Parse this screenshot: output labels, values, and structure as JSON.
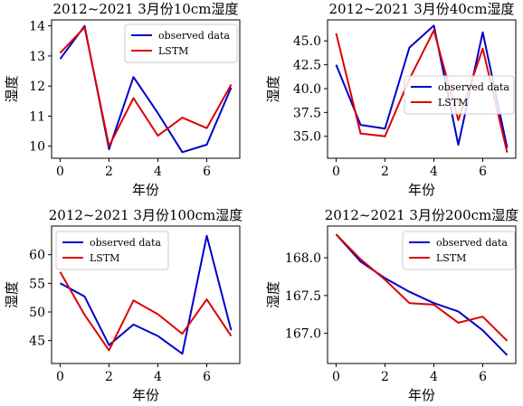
{
  "chart_data": [
    {
      "type": "line",
      "title": "2012~2021 3月份10cm湿度",
      "xlabel": "年份",
      "ylabel": "湿度",
      "x": [
        0,
        1,
        2,
        3,
        4,
        5,
        6,
        7
      ],
      "xticks": [
        0,
        2,
        4,
        6
      ],
      "xlim": [
        -0.35,
        7.35
      ],
      "ylim": [
        9.6,
        14.2
      ],
      "yticks": [
        10,
        11,
        12,
        13,
        14
      ],
      "ytick_labels": [
        "10",
        "11",
        "12",
        "13",
        "14"
      ],
      "legend": "top-right",
      "series": [
        {
          "name": "observed data",
          "color": "#0000cc",
          "values": [
            12.9,
            14.0,
            9.9,
            12.3,
            11.1,
            9.8,
            10.05,
            11.95
          ]
        },
        {
          "name": "LSTM",
          "color": "#dd0000",
          "values": [
            13.1,
            13.95,
            10.0,
            11.6,
            10.35,
            10.95,
            10.6,
            12.05
          ]
        }
      ]
    },
    {
      "type": "line",
      "title": "2012~2021 3月份40cm湿度",
      "xlabel": "年份",
      "ylabel": "湿度",
      "x": [
        0,
        1,
        2,
        3,
        4,
        5,
        6,
        7
      ],
      "xticks": [
        0,
        2,
        4,
        6
      ],
      "xlim": [
        -0.35,
        7.35
      ],
      "ylim": [
        32.7,
        47.2
      ],
      "yticks": [
        35.0,
        37.5,
        40.0,
        42.5,
        45.0
      ],
      "ytick_labels": [
        "35.0",
        "37.5",
        "40.0",
        "42.5",
        "45.0"
      ],
      "legend": "center-right",
      "series": [
        {
          "name": "observed data",
          "color": "#0000cc",
          "values": [
            42.5,
            36.2,
            35.8,
            44.3,
            46.6,
            34.1,
            45.9,
            33.8
          ]
        },
        {
          "name": "LSTM",
          "color": "#dd0000",
          "values": [
            45.8,
            35.3,
            35.0,
            41.0,
            46.1,
            36.7,
            44.2,
            33.3
          ]
        }
      ]
    },
    {
      "type": "line",
      "title": "2012~2021 3月份100cm湿度",
      "xlabel": "年份",
      "ylabel": "湿度",
      "x": [
        0,
        1,
        2,
        3,
        4,
        5,
        6,
        7
      ],
      "xticks": [
        0,
        2,
        4,
        6
      ],
      "xlim": [
        -0.35,
        7.35
      ],
      "ylim": [
        41.0,
        65.0
      ],
      "yticks": [
        45,
        50,
        55,
        60
      ],
      "ytick_labels": [
        "45",
        "50",
        "55",
        "60"
      ],
      "legend": "top-left",
      "series": [
        {
          "name": "observed data",
          "color": "#0000cc",
          "values": [
            55.0,
            52.7,
            44.2,
            47.8,
            45.8,
            42.7,
            63.3,
            46.8
          ]
        },
        {
          "name": "LSTM",
          "color": "#dd0000",
          "values": [
            57.0,
            49.5,
            43.3,
            52.0,
            49.6,
            46.2,
            52.2,
            45.8
          ]
        }
      ]
    },
    {
      "type": "line",
      "title": "2012~2021 3月份200cm湿度",
      "xlabel": "年份",
      "ylabel": "湿度",
      "x": [
        0,
        1,
        2,
        3,
        4,
        5,
        6,
        7
      ],
      "xticks": [
        0,
        2,
        4,
        6
      ],
      "xlim": [
        -0.35,
        7.35
      ],
      "ylim": [
        166.6,
        168.42
      ],
      "yticks": [
        167.0,
        167.5,
        168.0
      ],
      "ytick_labels": [
        "167.0",
        "167.5",
        "168.0"
      ],
      "legend": "top-right",
      "series": [
        {
          "name": "observed data",
          "color": "#0000cc",
          "values": [
            168.31,
            167.95,
            167.73,
            167.55,
            167.4,
            167.29,
            167.04,
            166.71
          ]
        },
        {
          "name": "LSTM",
          "color": "#dd0000",
          "values": [
            168.31,
            167.98,
            167.71,
            167.4,
            167.38,
            167.14,
            167.22,
            166.9
          ]
        }
      ]
    }
  ]
}
